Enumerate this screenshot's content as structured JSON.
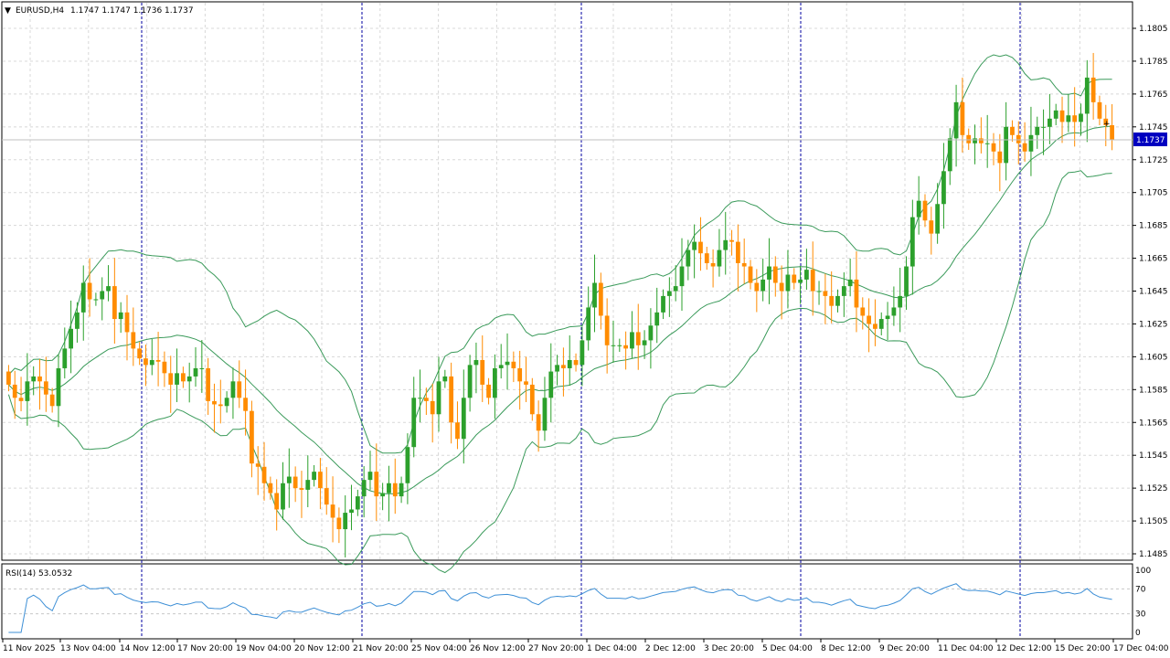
{
  "header": {
    "symbol_tf": "EURUSD,H4",
    "ohlc": "1.1747 1.1747 1.1736 1.1737",
    "dropdown_glyph": "▼"
  },
  "rsi_panel": {
    "label": "RSI(14) 53.0532",
    "levels": [
      "100",
      "70",
      "30",
      "0"
    ]
  },
  "current_price": "1.1737",
  "colors": {
    "bull": "#2ca02c",
    "bear": "#ff8c00",
    "bands": "#3a9a5a",
    "rsi": "#3d8fd6",
    "grid": "#d8d8d8",
    "separator": "#0000a0",
    "price_tag_bg": "#0000c0"
  },
  "chart_data": [
    {
      "type": "candlestick",
      "symbol": "EURUSD",
      "timeframe": "H4",
      "y_ticks": [
        "1.1805",
        "1.1785",
        "1.1765",
        "1.1745",
        "1.1725",
        "1.1705",
        "1.1685",
        "1.1665",
        "1.1645",
        "1.1625",
        "1.1605",
        "1.1585",
        "1.1565",
        "1.1545",
        "1.1525",
        "1.1505",
        "1.1485"
      ],
      "ylim": [
        1.148,
        1.1812
      ],
      "x_ticks": [
        "11 Nov 2025",
        "13 Nov 04:00",
        "14 Nov 12:00",
        "17 Nov 20:00",
        "19 Nov 04:00",
        "20 Nov 12:00",
        "21 Nov 20:00",
        "25 Nov 04:00",
        "26 Nov 12:00",
        "27 Nov 20:00",
        "1 Dec 04:00",
        "2 Dec 12:00",
        "3 Dec 20:00",
        "5 Dec 04:00",
        "8 Dec 12:00",
        "9 Dec 20:00",
        "11 Dec 04:00",
        "12 Dec 12:00",
        "15 Dec 20:00",
        "17 Dec 04:00"
      ],
      "series": [
        {
          "name": "EURUSD,H4",
          "closes": [
            1.1588,
            1.158,
            1.1578,
            1.159,
            1.1593,
            1.159,
            1.1582,
            1.1575,
            1.1598,
            1.161,
            1.1622,
            1.1632,
            1.165,
            1.164,
            1.164,
            1.1645,
            1.1648,
            1.1628,
            1.1632,
            1.162,
            1.161,
            1.1604,
            1.16,
            1.1603,
            1.1602,
            1.1595,
            1.1588,
            1.1595,
            1.159,
            1.1593,
            1.1598,
            1.1598,
            1.1578,
            1.1576,
            1.1575,
            1.158,
            1.159,
            1.158,
            1.1572,
            1.154,
            1.1538,
            1.1528,
            1.1522,
            1.1512,
            1.1528,
            1.1532,
            1.1525,
            1.1524,
            1.153,
            1.1535,
            1.1525,
            1.1515,
            1.1507,
            1.15,
            1.151,
            1.1512,
            1.152,
            1.153,
            1.1535,
            1.152,
            1.1522,
            1.1528,
            1.152,
            1.1528,
            1.155,
            1.158,
            1.158,
            1.1578,
            1.157,
            1.159,
            1.1593,
            1.1565,
            1.1555,
            1.158,
            1.16,
            1.1603,
            1.1588,
            1.158,
            1.1598,
            1.16,
            1.1602,
            1.1598,
            1.159,
            1.1588,
            1.157,
            1.156,
            1.158,
            1.1596,
            1.16,
            1.1598,
            1.1603,
            1.16,
            1.1615,
            1.1635,
            1.165,
            1.163,
            1.1612,
            1.1612,
            1.1612,
            1.161,
            1.162,
            1.1612,
            1.1615,
            1.1624,
            1.1632,
            1.1642,
            1.1645,
            1.1648,
            1.166,
            1.167,
            1.1675,
            1.1668,
            1.1662,
            1.166,
            1.167,
            1.1676,
            1.1675,
            1.1662,
            1.166,
            1.165,
            1.1645,
            1.1652,
            1.166,
            1.165,
            1.1645,
            1.1655,
            1.165,
            1.1652,
            1.1658,
            1.1645,
            1.1645,
            1.1642,
            1.1636,
            1.1642,
            1.1648,
            1.1652,
            1.1635,
            1.163,
            1.1625,
            1.1622,
            1.1628,
            1.163,
            1.1635,
            1.1642,
            1.166,
            1.169,
            1.17,
            1.1688,
            1.168,
            1.1698,
            1.1718,
            1.1738,
            1.176,
            1.174,
            1.1735,
            1.1738,
            1.1735,
            1.1735,
            1.173,
            1.1723,
            1.1745,
            1.174,
            1.1735,
            1.173,
            1.174,
            1.1745,
            1.1745,
            1.175,
            1.1755,
            1.1748,
            1.1752,
            1.1748,
            1.1753,
            1.1775,
            1.176,
            1.175,
            1.1746,
            1.1737
          ]
        },
        {
          "name": "Bollinger Bands",
          "kind": "upper/middle/lower envelope"
        }
      ]
    },
    {
      "type": "line",
      "title": "RSI(14) 53.0532",
      "ylim": [
        0,
        100
      ],
      "levels": [
        70,
        30
      ],
      "last_value": 53.0532
    }
  ]
}
